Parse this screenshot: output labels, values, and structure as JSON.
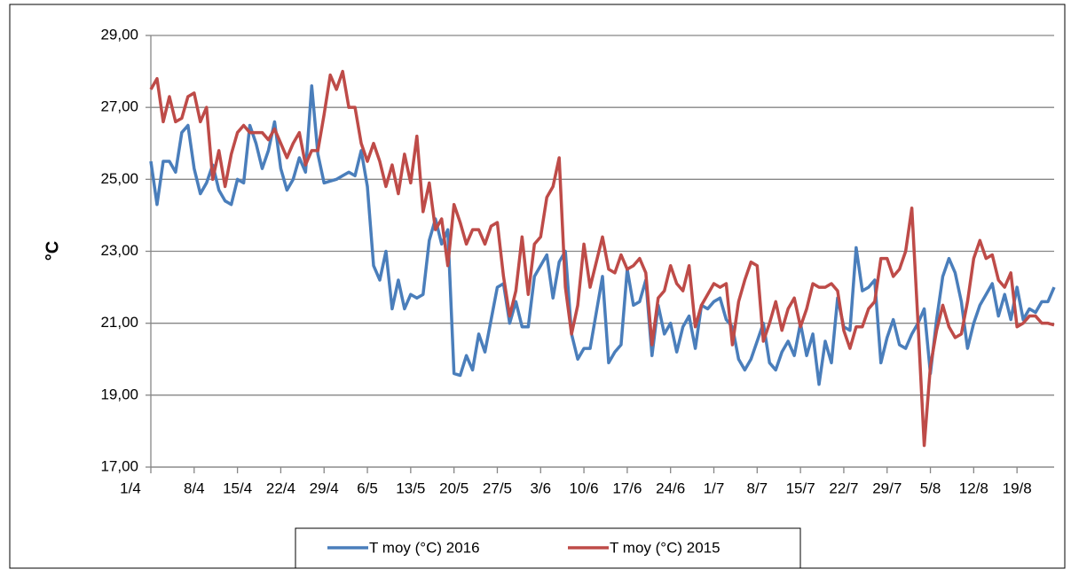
{
  "chart_data": {
    "type": "line",
    "y_label": "°C",
    "categories": [
      "1/4",
      null,
      null,
      null,
      null,
      null,
      null,
      "8/4",
      null,
      null,
      null,
      null,
      null,
      null,
      "15/4",
      null,
      null,
      null,
      null,
      null,
      null,
      "22/4",
      null,
      null,
      null,
      null,
      null,
      null,
      "29/4",
      null,
      null,
      null,
      null,
      null,
      null,
      "6/5",
      null,
      null,
      null,
      null,
      null,
      null,
      "13/5",
      null,
      null,
      null,
      null,
      null,
      null,
      "20/5",
      null,
      null,
      null,
      null,
      null,
      null,
      "27/5",
      null,
      null,
      null,
      null,
      null,
      null,
      "3/6",
      null,
      null,
      null,
      null,
      null,
      null,
      "10/6",
      null,
      null,
      null,
      null,
      null,
      null,
      "17/6",
      null,
      null,
      null,
      null,
      null,
      null,
      "24/6",
      null,
      null,
      null,
      null,
      null,
      null,
      "1/7",
      null,
      null,
      null,
      null,
      null,
      null,
      "8/7",
      null,
      null,
      null,
      null,
      null,
      null,
      "15/7",
      null,
      null,
      null,
      null,
      null,
      null,
      "22/7",
      null,
      null,
      null,
      null,
      null,
      null,
      "29/7",
      null,
      null,
      null,
      null,
      null,
      null,
      "5/8",
      null,
      null,
      null,
      null,
      null,
      null,
      "12/8",
      null,
      null,
      null,
      null,
      null,
      null,
      "19/8",
      null,
      null,
      null,
      null,
      null,
      null
    ],
    "series": [
      {
        "name": "T moy (°C) 2016",
        "color": "#4a7ebb",
        "values": [
          25.5,
          24.3,
          25.5,
          25.5,
          25.2,
          26.3,
          26.5,
          25.3,
          24.6,
          24.9,
          25.4,
          24.7,
          24.4,
          24.3,
          25.0,
          24.9,
          26.5,
          26.0,
          25.3,
          25.8,
          26.6,
          25.3,
          24.7,
          25.0,
          25.6,
          25.2,
          27.6,
          25.7,
          24.9,
          24.95,
          25.0,
          25.1,
          25.2,
          25.1,
          25.8,
          24.8,
          22.6,
          22.2,
          23.0,
          21.4,
          22.2,
          21.4,
          21.8,
          21.7,
          21.8,
          23.3,
          23.9,
          23.2,
          23.6,
          19.6,
          19.55,
          20.1,
          19.7,
          20.7,
          20.2,
          21.1,
          22.0,
          22.1,
          21.0,
          21.6,
          20.9,
          20.9,
          22.3,
          22.6,
          22.9,
          21.7,
          22.7,
          23.0,
          20.7,
          20.0,
          20.3,
          20.3,
          21.3,
          22.3,
          19.9,
          20.2,
          20.4,
          22.5,
          21.5,
          21.6,
          22.2,
          20.1,
          21.5,
          20.7,
          21.0,
          20.2,
          20.9,
          21.2,
          20.3,
          21.5,
          21.4,
          21.6,
          21.7,
          21.1,
          20.9,
          20.0,
          19.7,
          20.0,
          20.5,
          21.0,
          19.9,
          19.7,
          20.2,
          20.5,
          20.1,
          21.0,
          20.1,
          20.7,
          19.3,
          20.5,
          19.9,
          21.7,
          20.9,
          20.8,
          23.1,
          21.9,
          22.0,
          22.2,
          19.9,
          20.6,
          21.1,
          20.4,
          20.3,
          20.7,
          21.0,
          21.4,
          19.6,
          21.1,
          22.3,
          22.8,
          22.4,
          21.6,
          20.3,
          21.0,
          21.5,
          21.8,
          22.1,
          21.2,
          21.8,
          21.1,
          22.0,
          21.1,
          21.4,
          21.3,
          21.6,
          21.6,
          22.0
        ]
      },
      {
        "name": "T moy (°C) 2015",
        "color": "#be4b48",
        "values": [
          27.5,
          27.8,
          26.6,
          27.3,
          26.6,
          26.7,
          27.3,
          27.4,
          26.6,
          27.0,
          25.0,
          25.8,
          24.8,
          25.7,
          26.3,
          26.5,
          26.3,
          26.3,
          26.3,
          26.1,
          26.4,
          26.0,
          25.6,
          26.0,
          26.3,
          25.4,
          25.8,
          25.8,
          26.8,
          27.9,
          27.5,
          28.0,
          27.0,
          27.0,
          26.0,
          25.5,
          26.0,
          25.5,
          24.8,
          25.4,
          24.6,
          25.7,
          24.9,
          26.2,
          24.1,
          24.9,
          23.6,
          23.9,
          22.6,
          24.3,
          23.8,
          23.2,
          23.6,
          23.6,
          23.2,
          23.7,
          23.8,
          22.3,
          21.2,
          21.9,
          23.4,
          21.8,
          23.2,
          23.4,
          24.5,
          24.8,
          25.6,
          22.0,
          20.7,
          21.5,
          23.2,
          22.0,
          22.7,
          23.4,
          22.5,
          22.4,
          22.9,
          22.5,
          22.6,
          22.8,
          22.4,
          20.4,
          21.7,
          21.9,
          22.6,
          22.1,
          21.9,
          22.6,
          20.9,
          21.5,
          21.8,
          22.1,
          22.0,
          22.1,
          20.4,
          21.6,
          22.2,
          22.7,
          22.6,
          20.5,
          21.0,
          21.6,
          20.8,
          21.4,
          21.7,
          20.9,
          21.4,
          22.1,
          22.0,
          22.0,
          22.1,
          21.9,
          20.8,
          20.3,
          20.9,
          20.9,
          21.4,
          21.6,
          22.8,
          22.8,
          22.3,
          22.5,
          23.0,
          24.2,
          21.0,
          17.6,
          19.8,
          20.8,
          21.5,
          20.9,
          20.6,
          20.7,
          21.6,
          22.8,
          23.3,
          22.8,
          22.9,
          22.2,
          22.0,
          22.4,
          20.9,
          21.0,
          21.2,
          21.2,
          21.0,
          21.0,
          20.95
        ]
      }
    ],
    "ylim": [
      17,
      29
    ],
    "yticks": [
      {
        "value": 17,
        "label": "17,00"
      },
      {
        "value": 19,
        "label": "19,00"
      },
      {
        "value": 21,
        "label": "21,00"
      },
      {
        "value": 23,
        "label": "23,00"
      },
      {
        "value": 25,
        "label": "25,00"
      },
      {
        "value": 27,
        "label": "27,00"
      },
      {
        "value": 29,
        "label": "29,00"
      }
    ],
    "grid": true,
    "legend": "bottom"
  }
}
